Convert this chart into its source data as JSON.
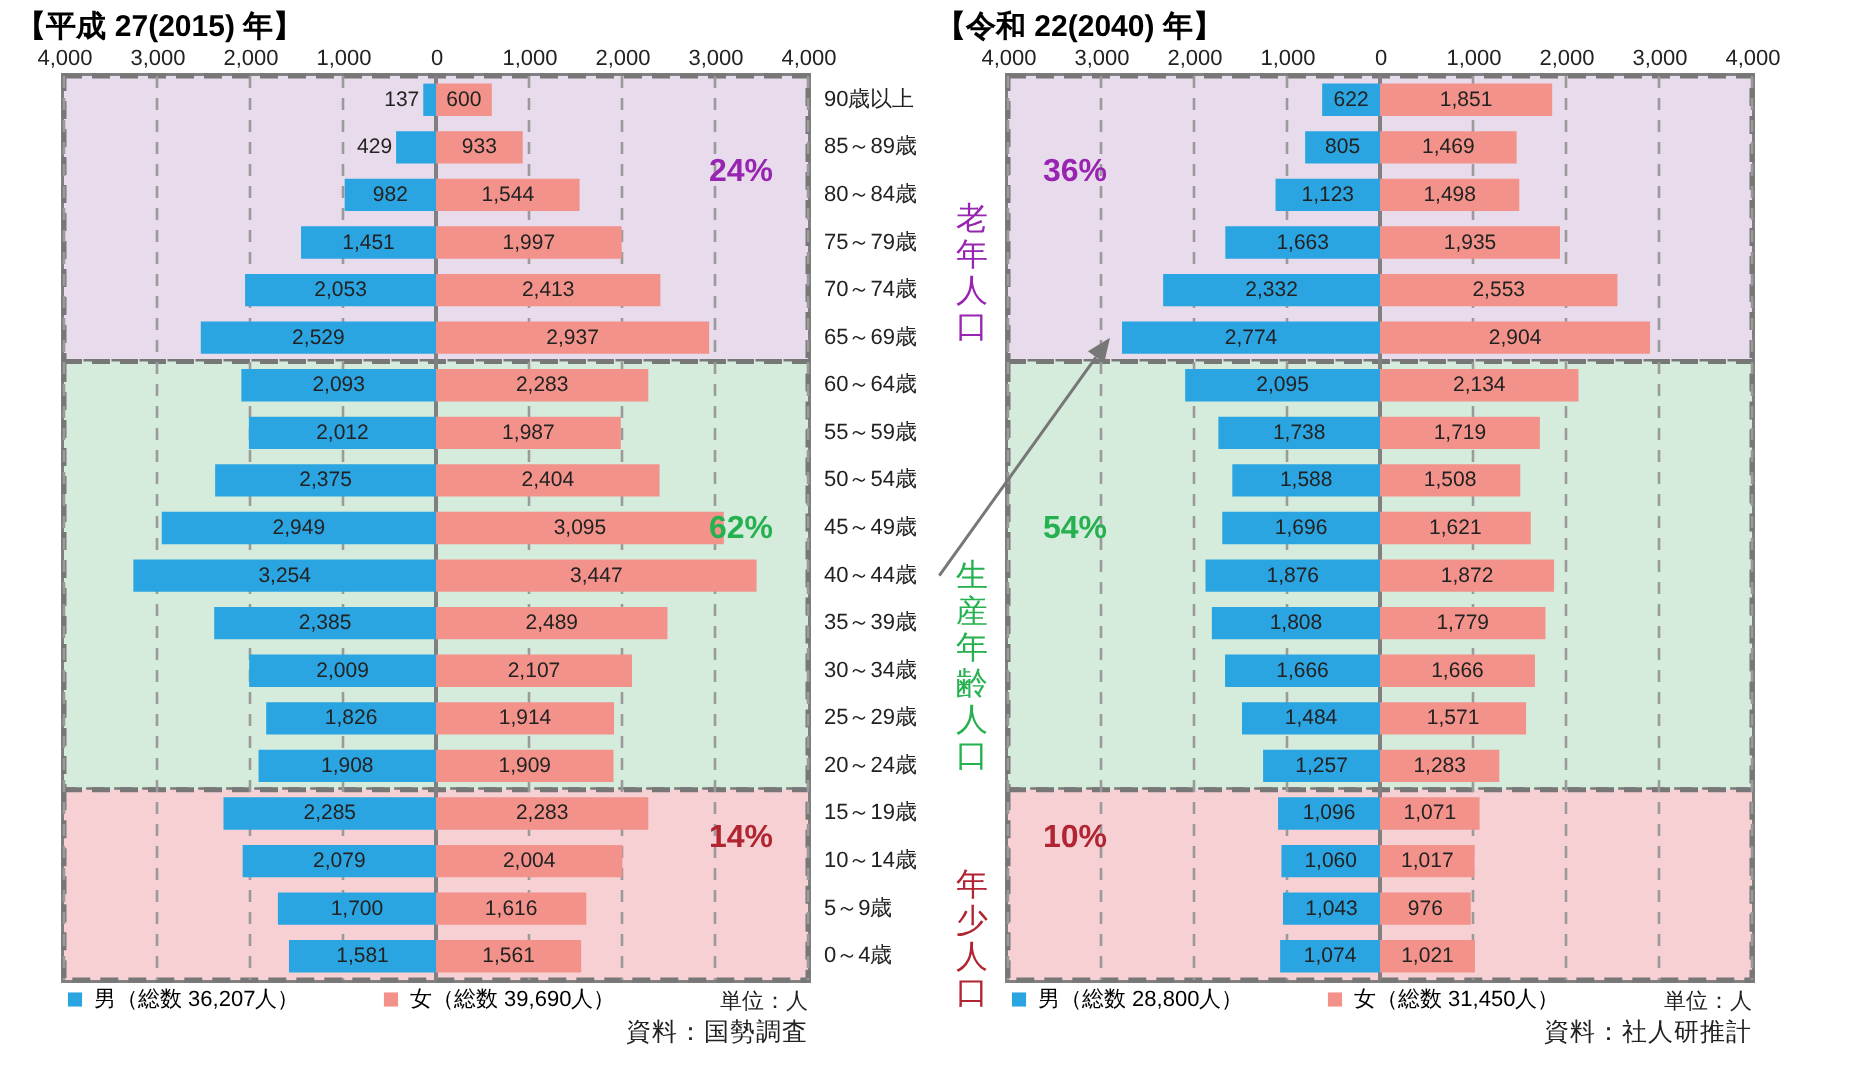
{
  "chart_data": [
    {
      "type": "bar",
      "orientation": "horizontal",
      "title": "【平成 27(2015) 年】",
      "categories": [
        "90歳以上",
        "85～89歳",
        "80～84歳",
        "75～79歳",
        "70～74歳",
        "65～69歳",
        "60～64歳",
        "55～59歳",
        "50～54歳",
        "45～49歳",
        "40～44歳",
        "35～39歳",
        "30～34歳",
        "25～29歳",
        "20～24歳",
        "15～19歳",
        "10～14歳",
        "5～9歳",
        "0～4歳"
      ],
      "series": [
        {
          "name": "男（総数 36,207人）",
          "color": "#2aa5e2",
          "values": [
            137,
            429,
            982,
            1451,
            2053,
            2529,
            2093,
            2012,
            2375,
            2949,
            3254,
            2385,
            2009,
            1826,
            1908,
            2285,
            2079,
            1700,
            1581
          ],
          "base": [
            -137,
            -429,
            -982,
            -1451,
            -2053,
            -2529,
            -2093,
            -2012,
            -2375,
            -2949,
            -3254,
            -2385,
            -2009,
            -1826,
            -1908,
            -2285,
            -2079,
            -1700,
            -1581
          ],
          "value_labels": [
            "137",
            "429",
            "982",
            "1,451",
            "2,053",
            "2,529",
            "2,093",
            "2,012",
            "2,375",
            "2,949",
            "3,254",
            "2,385",
            "2,009",
            "1,826",
            "1,908",
            "2,285",
            "2,079",
            "1,700",
            "1,581"
          ]
        },
        {
          "name": "女（総数 39,690人）",
          "color": "#f2928a",
          "values": [
            600,
            933,
            1544,
            1997,
            2413,
            2937,
            2283,
            1987,
            2404,
            3095,
            3447,
            2489,
            2107,
            1914,
            1909,
            2283,
            2004,
            1616,
            1561
          ],
          "value_labels": [
            "600",
            "933",
            "1,544",
            "1,997",
            "2,413",
            "2,937",
            "2,283",
            "1,987",
            "2,404",
            "3,095",
            "3,447",
            "2,489",
            "2,107",
            "1,914",
            "1,909",
            "2,283",
            "2,004",
            "1,616",
            "1,561"
          ]
        }
      ],
      "xlim": [
        -4000,
        4000
      ],
      "xticks": [
        {
          "value": -4000,
          "label": "4,000"
        },
        {
          "value": -3000,
          "label": "3,000"
        },
        {
          "value": -2000,
          "label": "2,000"
        },
        {
          "value": -1000,
          "label": "1,000"
        },
        {
          "value": 0,
          "label": "0"
        },
        {
          "value": 1000,
          "label": "1,000"
        },
        {
          "value": 2000,
          "label": "2,000"
        },
        {
          "value": 3000,
          "label": "3,000"
        },
        {
          "value": 4000,
          "label": "4,000"
        }
      ],
      "grid": "x",
      "legend": "bottom",
      "bands": [
        {
          "axis": "y",
          "from": "90歳以上",
          "to": "65～69歳",
          "color": "#e8dbeb"
        },
        {
          "axis": "y",
          "from": "60～64歳",
          "to": "20～24歳",
          "color": "#d5ecdc"
        },
        {
          "axis": "y",
          "from": "15～19歳",
          "to": "0～4歳",
          "color": "#f7d0d4"
        }
      ],
      "ref_lines": [
        {
          "axis": "x",
          "value": 0,
          "color": "#808080"
        }
      ],
      "annotations": [
        "24%",
        "62%",
        "14%",
        "単位：人",
        "資料：国勢調査"
      ]
    },
    {
      "type": "bar",
      "orientation": "horizontal",
      "title": "【令和 22(2040) 年】",
      "categories": [
        "90歳以上",
        "85～89歳",
        "80～84歳",
        "75～79歳",
        "70～74歳",
        "65～69歳",
        "60～64歳",
        "55～59歳",
        "50～54歳",
        "45～49歳",
        "40～44歳",
        "35～39歳",
        "30～34歳",
        "25～29歳",
        "20～24歳",
        "15～19歳",
        "10～14歳",
        "5～9歳",
        "0～4歳"
      ],
      "series": [
        {
          "name": "男（総数 28,800人）",
          "color": "#2aa5e2",
          "values": [
            622,
            805,
            1123,
            1663,
            2332,
            2774,
            2095,
            1738,
            1588,
            1696,
            1876,
            1808,
            1666,
            1484,
            1257,
            1096,
            1060,
            1043,
            1074
          ],
          "base": [
            -622,
            -805,
            -1123,
            -1663,
            -2332,
            -2774,
            -2095,
            -1738,
            -1588,
            -1696,
            -1876,
            -1808,
            -1666,
            -1484,
            -1257,
            -1096,
            -1060,
            -1043,
            -1074
          ],
          "value_labels": [
            "622",
            "805",
            "1,123",
            "1,663",
            "2,332",
            "2,774",
            "2,095",
            "1,738",
            "1,588",
            "1,696",
            "1,876",
            "1,808",
            "1,666",
            "1,484",
            "1,257",
            "1,096",
            "1,060",
            "1,043",
            "1,074"
          ]
        },
        {
          "name": "女（総数 31,450人）",
          "color": "#f2928a",
          "values": [
            1851,
            1469,
            1498,
            1935,
            2553,
            2904,
            2134,
            1719,
            1508,
            1621,
            1872,
            1779,
            1666,
            1571,
            1283,
            1071,
            1017,
            976,
            1021
          ],
          "value_labels": [
            "1,851",
            "1,469",
            "1,498",
            "1,935",
            "2,553",
            "2,904",
            "2,134",
            "1,719",
            "1,508",
            "1,621",
            "1,872",
            "1,779",
            "1,666",
            "1,571",
            "1,283",
            "1,071",
            "1,017",
            "976",
            "1,021"
          ]
        }
      ],
      "xlim": [
        -4000,
        4000
      ],
      "xticks": [
        {
          "value": -4000,
          "label": "4,000"
        },
        {
          "value": -3000,
          "label": "3,000"
        },
        {
          "value": -2000,
          "label": "2,000"
        },
        {
          "value": -1000,
          "label": "1,000"
        },
        {
          "value": 0,
          "label": "0"
        },
        {
          "value": 1000,
          "label": "1,000"
        },
        {
          "value": 2000,
          "label": "2,000"
        },
        {
          "value": 3000,
          "label": "3,000"
        },
        {
          "value": 4000,
          "label": "4,000"
        }
      ],
      "grid": "x",
      "legend": "bottom",
      "tick_labels": "x",
      "bands": [
        {
          "axis": "y",
          "from": "90歳以上",
          "to": "65～69歳",
          "color": "#e8dbeb",
          "label": "老年人口"
        },
        {
          "axis": "y",
          "from": "60～64歳",
          "to": "20～24歳",
          "color": "#d5ecdc",
          "label": "生産年齢人口"
        },
        {
          "axis": "y",
          "from": "15～19歳",
          "to": "0～4歳",
          "color": "#f7d0d4",
          "label": "年少人口"
        }
      ],
      "ref_lines": [
        {
          "axis": "x",
          "value": 0,
          "color": "#808080"
        }
      ],
      "annotations": [
        "36%",
        "54%",
        "10%",
        "単位：人",
        "資料：社人研推計"
      ]
    }
  ]
}
